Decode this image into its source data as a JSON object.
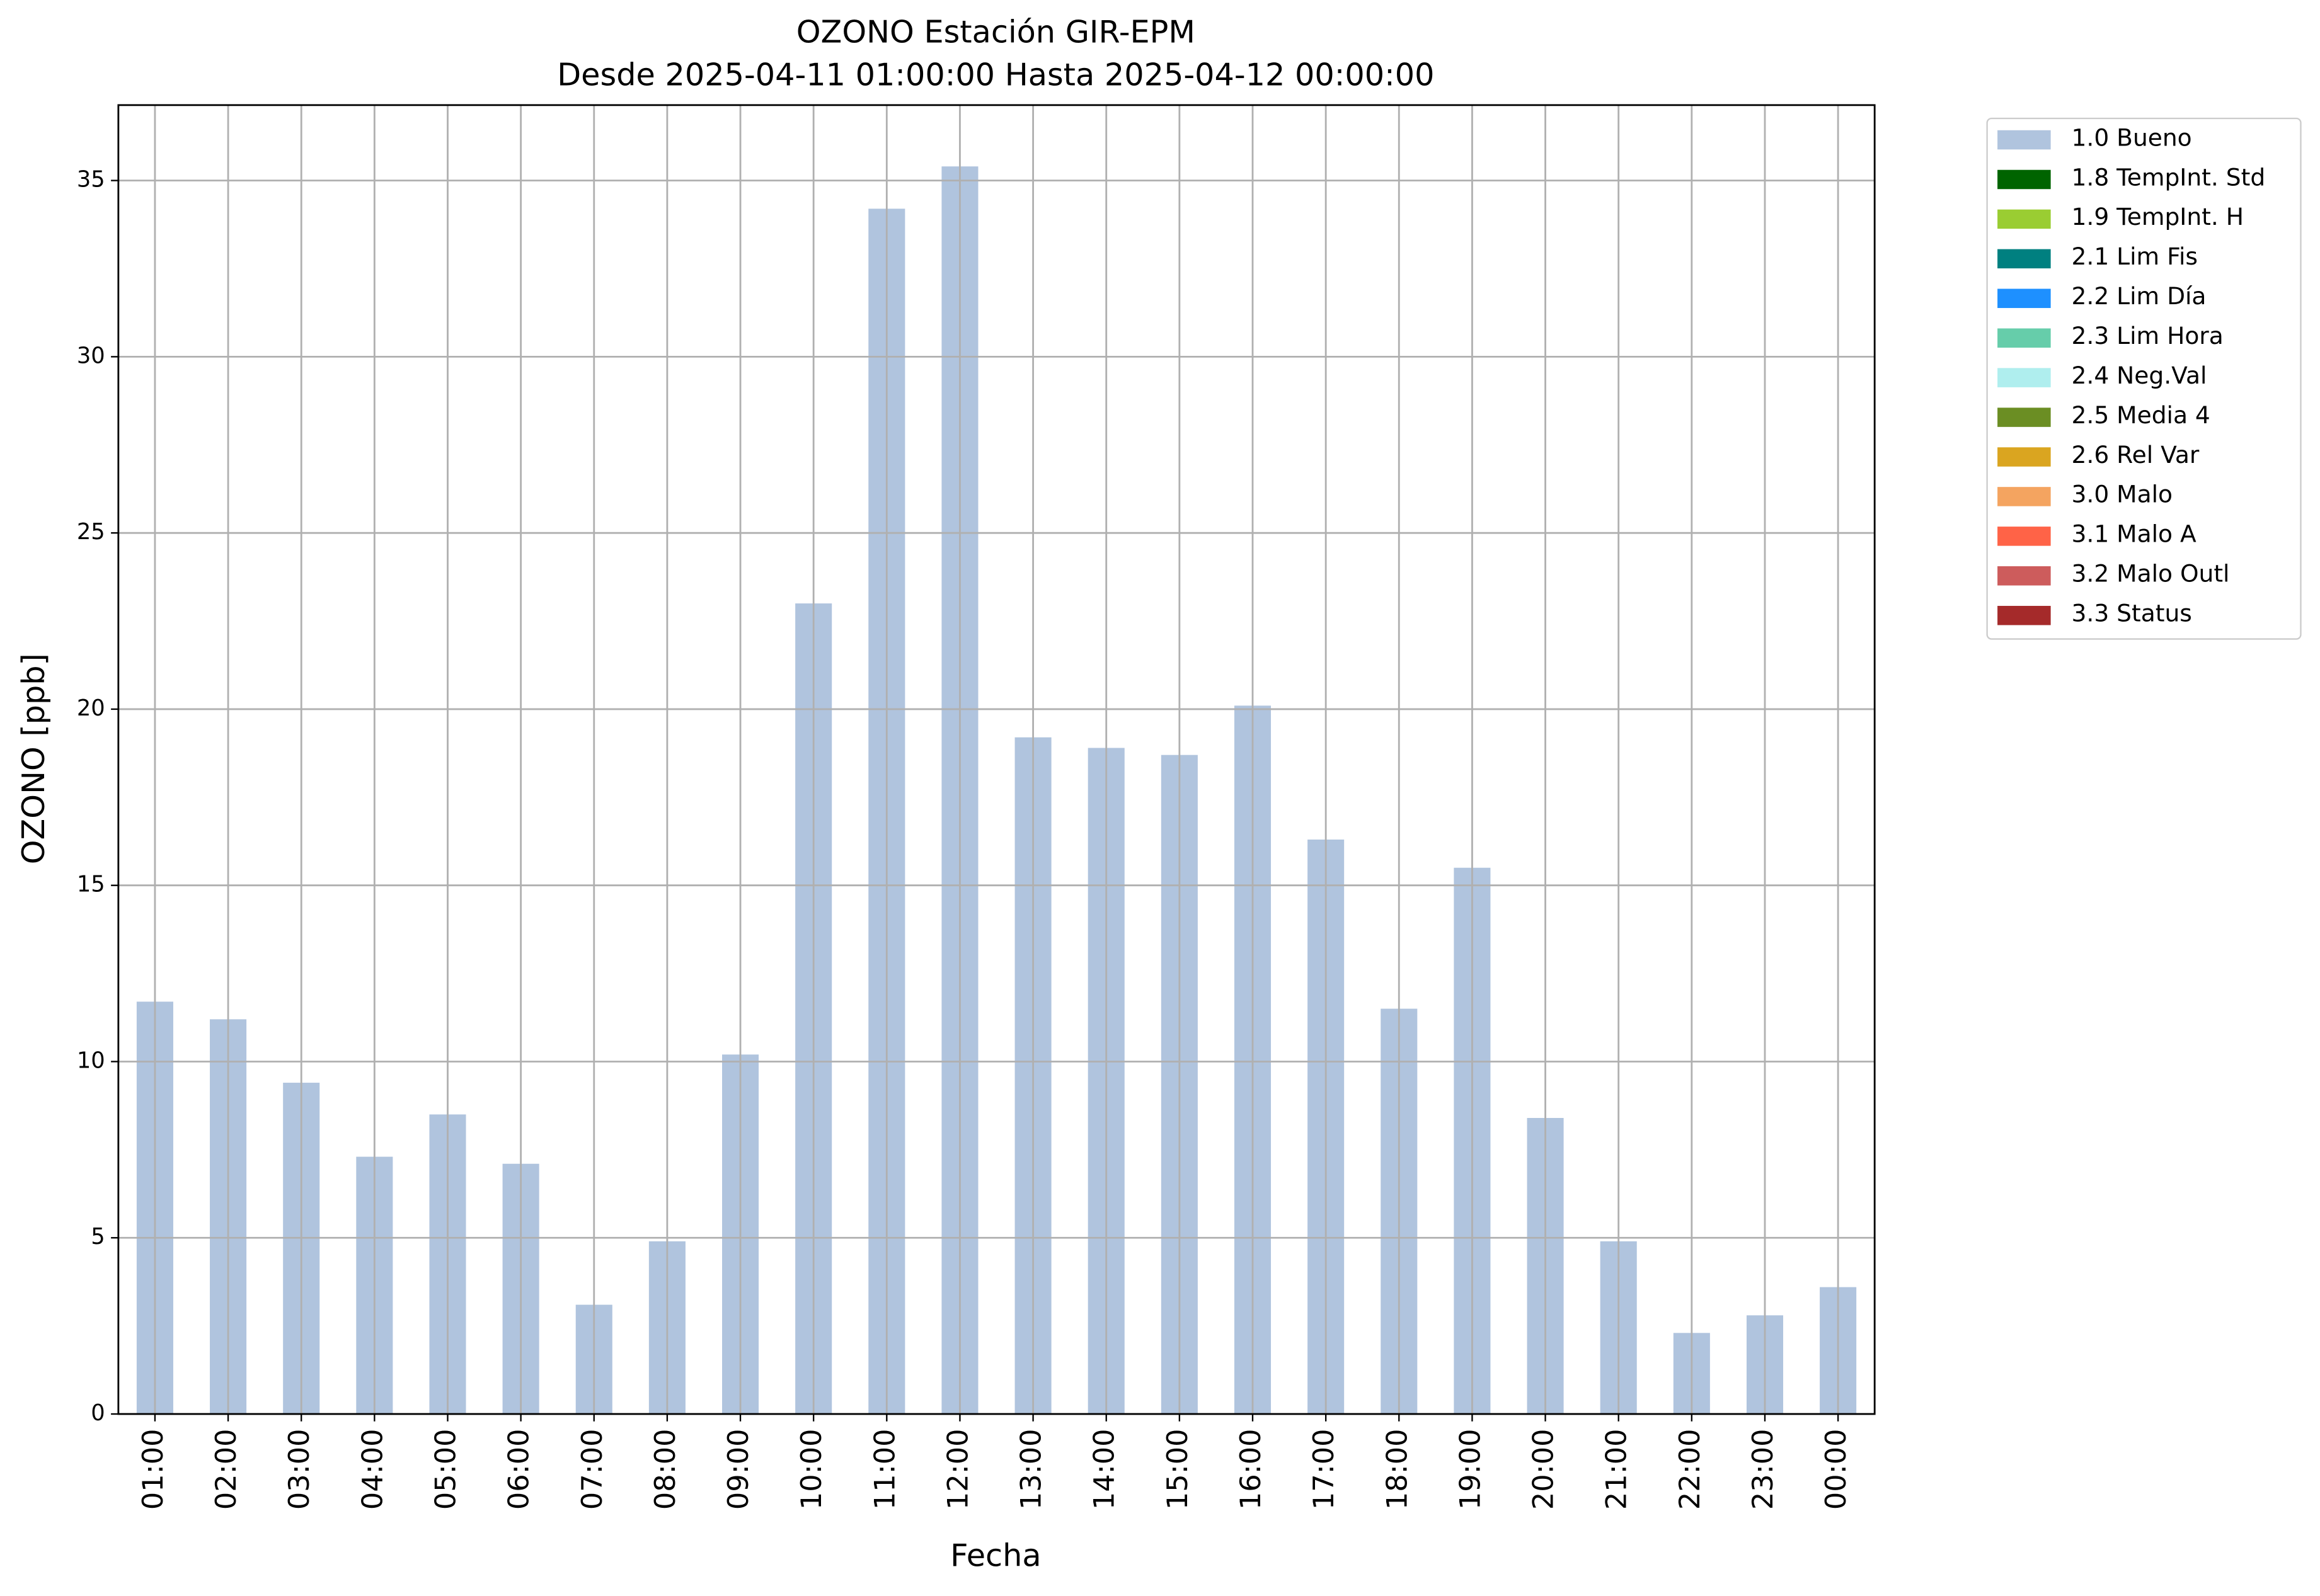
{
  "chart_data": {
    "type": "bar",
    "stacked": true,
    "title": "OZONO Estación GIR-EPM",
    "subtitle": "Desde 2025-04-11 01:00:00 Hasta 2025-04-12 00:00:00",
    "x_label": "Fecha",
    "y_label": "OZONO [ppb]",
    "categories": [
      "01:00",
      "02:00",
      "03:00",
      "04:00",
      "05:00",
      "06:00",
      "07:00",
      "08:00",
      "09:00",
      "10:00",
      "11:00",
      "12:00",
      "13:00",
      "14:00",
      "15:00",
      "16:00",
      "17:00",
      "18:00",
      "19:00",
      "20:00",
      "21:00",
      "22:00",
      "23:00",
      "00:00"
    ],
    "series": [
      {
        "name": "1.0 Bueno",
        "color": "#b0c4de",
        "values": [
          11.7,
          11.2,
          9.4,
          7.3,
          8.5,
          7.1,
          3.1,
          4.9,
          10.2,
          23.0,
          34.2,
          35.4,
          19.2,
          18.9,
          18.7,
          20.1,
          16.3,
          11.5,
          15.5,
          8.4,
          4.9,
          2.3,
          2.8,
          3.6
        ]
      },
      {
        "name": "1.8 TempInt. Std",
        "color": "#006400",
        "values": [
          0,
          0,
          0,
          0,
          0,
          0,
          0,
          0,
          0,
          0,
          0,
          0,
          0,
          0,
          0,
          0,
          0,
          0,
          0,
          0,
          0,
          0,
          0,
          0
        ]
      },
      {
        "name": "1.9 TempInt. H",
        "color": "#9acd32",
        "values": [
          0,
          0,
          0,
          0,
          0,
          0,
          0,
          0,
          0,
          0,
          0,
          0,
          0,
          0,
          0,
          0,
          0,
          0,
          0,
          0,
          0,
          0,
          0,
          0
        ]
      },
      {
        "name": "2.1 Lim Fis",
        "color": "#008080",
        "values": [
          0,
          0,
          0,
          0,
          0,
          0,
          0,
          0,
          0,
          0,
          0,
          0,
          0,
          0,
          0,
          0,
          0,
          0,
          0,
          0,
          0,
          0,
          0,
          0
        ]
      },
      {
        "name": "2.2 Lim Día",
        "color": "#1e90ff",
        "values": [
          0,
          0,
          0,
          0,
          0,
          0,
          0,
          0,
          0,
          0,
          0,
          0,
          0,
          0,
          0,
          0,
          0,
          0,
          0,
          0,
          0,
          0,
          0,
          0
        ]
      },
      {
        "name": "2.3 Lim Hora",
        "color": "#66cdaa",
        "values": [
          0,
          0,
          0,
          0,
          0,
          0,
          0,
          0,
          0,
          0,
          0,
          0,
          0,
          0,
          0,
          0,
          0,
          0,
          0,
          0,
          0,
          0,
          0,
          0
        ]
      },
      {
        "name": "2.4 Neg.Val",
        "color": "#afeeee",
        "values": [
          0,
          0,
          0,
          0,
          0,
          0,
          0,
          0,
          0,
          0,
          0,
          0,
          0,
          0,
          0,
          0,
          0,
          0,
          0,
          0,
          0,
          0,
          0,
          0
        ]
      },
      {
        "name": "2.5 Media 4",
        "color": "#6b8e23",
        "values": [
          0,
          0,
          0,
          0,
          0,
          0,
          0,
          0,
          0,
          0,
          0,
          0,
          0,
          0,
          0,
          0,
          0,
          0,
          0,
          0,
          0,
          0,
          0,
          0
        ]
      },
      {
        "name": "2.6 Rel Var",
        "color": "#daa520",
        "values": [
          0,
          0,
          0,
          0,
          0,
          0,
          0,
          0,
          0,
          0,
          0,
          0,
          0,
          0,
          0,
          0,
          0,
          0,
          0,
          0,
          0,
          0,
          0,
          0
        ]
      },
      {
        "name": "3.0 Malo",
        "color": "#f4a460",
        "values": [
          0,
          0,
          0,
          0,
          0,
          0,
          0,
          0,
          0,
          0,
          0,
          0,
          0,
          0,
          0,
          0,
          0,
          0,
          0,
          0,
          0,
          0,
          0,
          0
        ]
      },
      {
        "name": "3.1 Malo A",
        "color": "#ff6347",
        "values": [
          0,
          0,
          0,
          0,
          0,
          0,
          0,
          0,
          0,
          0,
          0,
          0,
          0,
          0,
          0,
          0,
          0,
          0,
          0,
          0,
          0,
          0,
          0,
          0
        ]
      },
      {
        "name": "3.2 Malo Outl",
        "color": "#cd5c5c",
        "values": [
          0,
          0,
          0,
          0,
          0,
          0,
          0,
          0,
          0,
          0,
          0,
          0,
          0,
          0,
          0,
          0,
          0,
          0,
          0,
          0,
          0,
          0,
          0,
          0
        ]
      },
      {
        "name": "3.3 Status",
        "color": "#a52a2a",
        "values": [
          0,
          0,
          0,
          0,
          0,
          0,
          0,
          0,
          0,
          0,
          0,
          0,
          0,
          0,
          0,
          0,
          0,
          0,
          0,
          0,
          0,
          0,
          0,
          0
        ]
      }
    ],
    "ylim": [
      0,
      37.14
    ],
    "yticks": [
      0,
      5,
      10,
      15,
      20,
      25,
      30,
      35
    ],
    "grid": true,
    "legend": "outside-right"
  }
}
